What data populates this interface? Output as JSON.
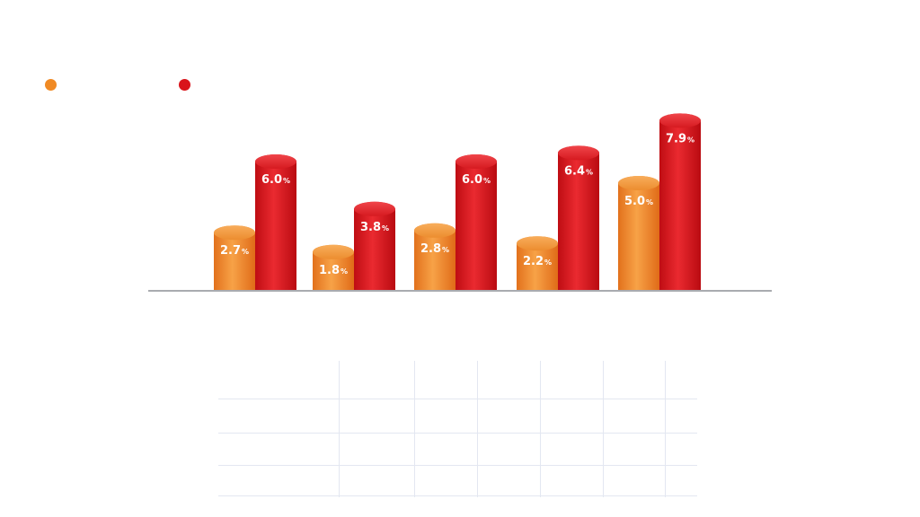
{
  "chart_data": {
    "type": "bar",
    "categories": [
      "",
      "",
      "",
      "",
      ""
    ],
    "series": [
      {
        "name": "",
        "color": "#f08a24",
        "values": [
          2.7,
          1.8,
          2.8,
          2.2,
          5.0
        ]
      },
      {
        "name": "",
        "color": "#d9141b",
        "values": [
          6.0,
          3.8,
          6.0,
          6.4,
          7.9
        ]
      }
    ],
    "value_suffix": "%",
    "ylim": [
      0,
      10
    ],
    "legend": "top-left",
    "grid": false,
    "baseline_color": "#a9abb0"
  }
}
